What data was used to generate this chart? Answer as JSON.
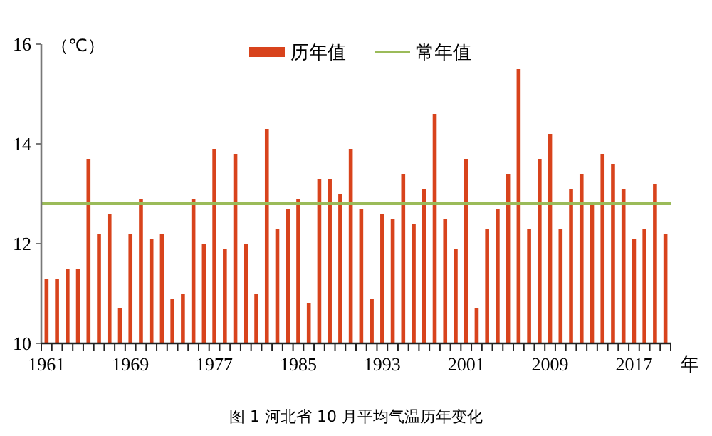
{
  "chart_data": {
    "type": "bar",
    "xlabel": "年",
    "ylabel": "（℃）",
    "categories": [
      "1961",
      null,
      null,
      null,
      null,
      null,
      null,
      null,
      "1969",
      null,
      null,
      null,
      null,
      null,
      null,
      null,
      "1977",
      null,
      null,
      null,
      null,
      null,
      null,
      null,
      "1985",
      null,
      null,
      null,
      null,
      null,
      null,
      null,
      "1993",
      null,
      null,
      null,
      null,
      null,
      null,
      null,
      "2001",
      null,
      null,
      null,
      null,
      null,
      null,
      null,
      "2009",
      null,
      null,
      null,
      null,
      null,
      null,
      null,
      "2017",
      null,
      null,
      null
    ],
    "series": [
      {
        "name": "历年值",
        "color": "#d8431c",
        "values": [
          11.3,
          11.3,
          11.5,
          11.5,
          13.7,
          12.2,
          12.6,
          10.7,
          12.2,
          12.9,
          12.1,
          12.2,
          10.9,
          11.0,
          12.9,
          12.0,
          13.9,
          11.9,
          13.8,
          12.0,
          11.0,
          14.3,
          12.3,
          12.7,
          12.9,
          10.8,
          13.3,
          13.3,
          13.0,
          13.9,
          12.7,
          10.9,
          12.6,
          12.5,
          13.4,
          12.4,
          13.1,
          14.6,
          12.5,
          11.9,
          13.7,
          10.7,
          12.3,
          12.7,
          13.4,
          15.5,
          12.3,
          13.7,
          14.2,
          12.3,
          13.1,
          13.4,
          12.8,
          13.8,
          13.6,
          13.1,
          12.1,
          12.3,
          13.2,
          12.2
        ]
      }
    ],
    "ref_lines": [
      {
        "axis": "y",
        "value": 12.8,
        "label": "常年值",
        "color": "#9bbb59",
        "line_style": "solid"
      }
    ],
    "ylim": [
      10,
      16
    ],
    "yticks": [
      10,
      12,
      14,
      16
    ],
    "grid": false,
    "legend": "top",
    "annotations": [
      "图 1 河北省 10 月平均气温历年变化"
    ]
  }
}
